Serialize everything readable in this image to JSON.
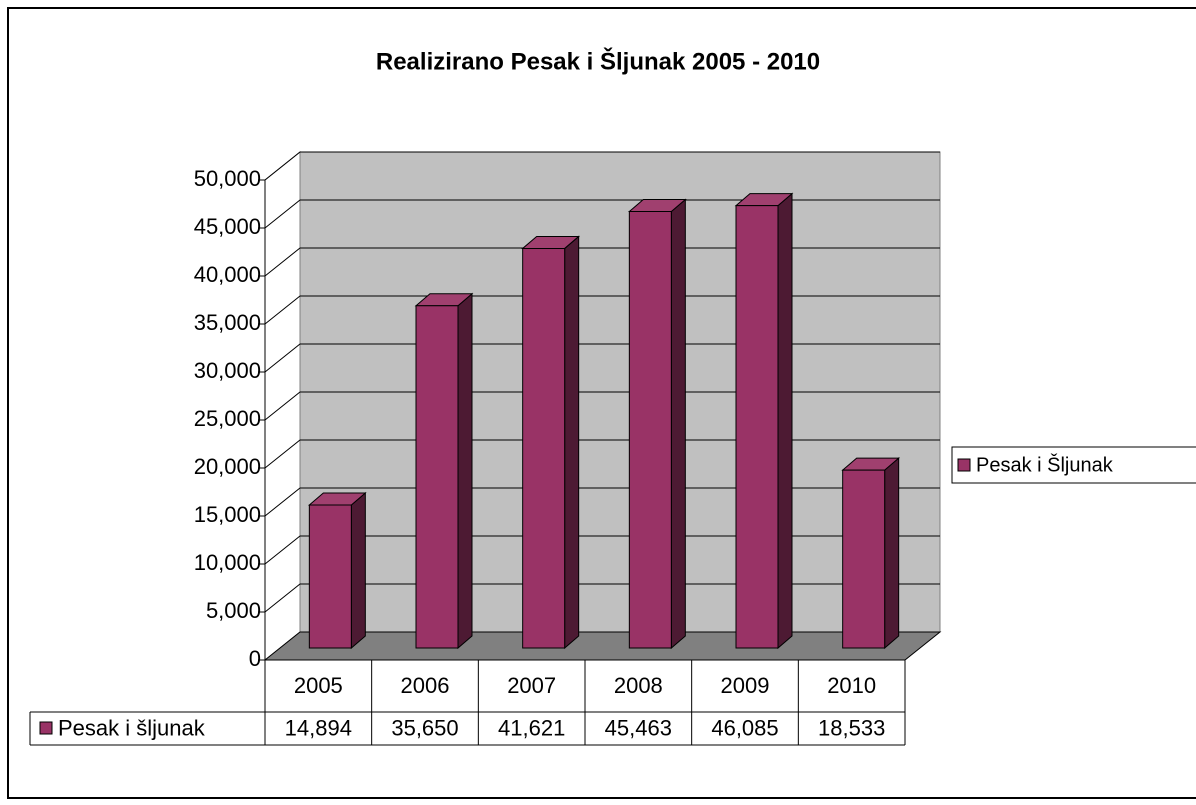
{
  "chart_data": {
    "type": "bar3d",
    "title": "Realizirano Pesak i Šljunak 2005 - 2010",
    "categories": [
      "2005",
      "2006",
      "2007",
      "2008",
      "2009",
      "2010"
    ],
    "series": [
      {
        "name": "Pesak i Šljunak",
        "color": "#993366",
        "values": [
          14894,
          35650,
          41621,
          45463,
          46085,
          18533
        ],
        "value_labels": [
          "14,894",
          "35,650",
          "41,621",
          "45,463",
          "46,085",
          "18,533"
        ]
      }
    ],
    "table_row_label": "Pesak i šljunak",
    "ylim": [
      0,
      50000
    ],
    "yticks": [
      0,
      {
        "value": 5000,
        "label": "5,000"
      },
      {
        "value": 10000,
        "label": "10,000"
      },
      {
        "value": 15000,
        "label": "15,000"
      },
      {
        "value": 20000,
        "label": "20,000"
      },
      {
        "value": 25000,
        "label": "25,000"
      },
      {
        "value": 30000,
        "label": "30,000"
      },
      {
        "value": 35000,
        "label": "35,000"
      },
      {
        "value": 40000,
        "label": "40,000"
      },
      {
        "value": 45000,
        "label": "45,000"
      },
      {
        "value": 50000,
        "label": "50,000"
      }
    ],
    "grid": true,
    "legend": "right",
    "data_table": true
  }
}
